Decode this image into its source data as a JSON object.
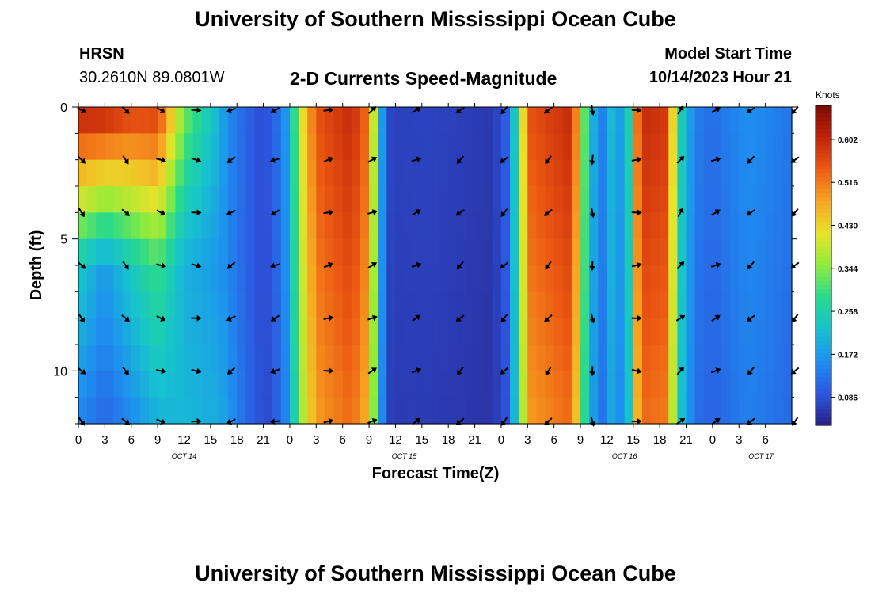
{
  "page": {
    "title": "University of Southern Mississippi Ocean Cube",
    "footer_title": "University of Southern Mississippi Ocean Cube"
  },
  "station": {
    "name": "HRSN",
    "coords": "30.2610N  89.0801W"
  },
  "model": {
    "label": "Model Start Time",
    "datetime": "10/14/2023 Hour 21"
  },
  "chart_data": {
    "type": "heatmap",
    "title": "2-D Currents Speed-Magnitude",
    "xlabel": "Forecast Time(Z)",
    "ylabel": "Depth (ft)",
    "x_hours_from_oct14_00z": [
      0,
      81
    ],
    "x_tick_labels": [
      "0",
      "3",
      "6",
      "9",
      "12",
      "15",
      "18",
      "21",
      "0",
      "3",
      "6",
      "9",
      "12",
      "15",
      "18",
      "21",
      "0",
      "3",
      "6",
      "9",
      "12",
      "15",
      "18",
      "21",
      "0",
      "3",
      "6"
    ],
    "date_labels": [
      {
        "label": "OCT 14",
        "hour": 12
      },
      {
        "label": "OCT 15",
        "hour": 37
      },
      {
        "label": "OCT 16",
        "hour": 62
      },
      {
        "label": "OCT 17",
        "hour": 77.5
      }
    ],
    "ylim": [
      0,
      12
    ],
    "y_tick_labels": [
      "0",
      "5",
      "10"
    ],
    "y_ticks": [
      0,
      5,
      10
    ],
    "colorbar": {
      "unit_label": "Knots",
      "range": [
        0.03,
        0.67
      ],
      "tick_labels": [
        "0.602",
        "0.516",
        "0.430",
        "0.344",
        "0.258",
        "0.172",
        "0.086"
      ],
      "tick_values": [
        0.602,
        0.516,
        0.43,
        0.344,
        0.258,
        0.172,
        0.086
      ],
      "colors": [
        "#2a1f86",
        "#2c57e0",
        "#1e8ff0",
        "#16c2cf",
        "#27d98f",
        "#90ec3a",
        "#e7e32a",
        "#f8a523",
        "#ec5a12",
        "#c0230a",
        "#7b0a04"
      ]
    },
    "time_profile_knots": [
      [
        0,
        0.62
      ],
      [
        5,
        0.62
      ],
      [
        9,
        0.56
      ],
      [
        11,
        0.4
      ],
      [
        12,
        0.26
      ],
      [
        14,
        0.14
      ],
      [
        17,
        0.1
      ],
      [
        19.5,
        0.09
      ],
      [
        21,
        0.08
      ],
      [
        23,
        0.13
      ],
      [
        24,
        0.2
      ],
      [
        25,
        0.38
      ],
      [
        27,
        0.55
      ],
      [
        31,
        0.6
      ],
      [
        33,
        0.52
      ],
      [
        34,
        0.26
      ],
      [
        35,
        0.08
      ],
      [
        36,
        0.07
      ],
      [
        40,
        0.072
      ],
      [
        44,
        0.065
      ],
      [
        47,
        0.06
      ],
      [
        48.5,
        0.1
      ],
      [
        50,
        0.3
      ],
      [
        51,
        0.55
      ],
      [
        56,
        0.6
      ],
      [
        57,
        0.42
      ],
      [
        58,
        0.22
      ],
      [
        60,
        0.12
      ],
      [
        61,
        0.3
      ],
      [
        62,
        0.06
      ],
      [
        63,
        0.45
      ],
      [
        64,
        0.6
      ],
      [
        67,
        0.58
      ],
      [
        68,
        0.28
      ],
      [
        70,
        0.14
      ],
      [
        72,
        0.12
      ],
      [
        76,
        0.16
      ],
      [
        81,
        0.13
      ]
    ],
    "depth_adjust_early_hours": [
      {
        "depth_ft": 0,
        "values": [
          0.62,
          0.62,
          0.58,
          0.58,
          0.34,
          0.17,
          0.11
        ]
      },
      {
        "depth_ft": 6,
        "values": [
          0.24,
          0.17,
          0.24,
          0.3,
          0.2,
          0.16,
          0.11
        ]
      },
      {
        "depth_ft": 12,
        "values": [
          0.15,
          0.11,
          0.15,
          0.2,
          0.21,
          0.19,
          0.13
        ]
      }
    ],
    "depth_adjust_hours": [
      0,
      3,
      6,
      9,
      12,
      17,
      21
    ],
    "arrow_depths_ft": [
      0,
      2,
      4,
      6,
      8,
      10,
      12
    ],
    "arrow_hours": [
      0,
      5,
      9,
      13,
      17,
      22,
      28,
      33,
      38,
      43,
      48,
      53,
      58,
      63,
      68,
      72,
      76,
      81
    ],
    "arrow_directions_deg": [
      135,
      135,
      110,
      100,
      240,
      250,
      80,
      60,
      60,
      225,
      225,
      225,
      180,
      90,
      45,
      60,
      225,
      225
    ]
  }
}
